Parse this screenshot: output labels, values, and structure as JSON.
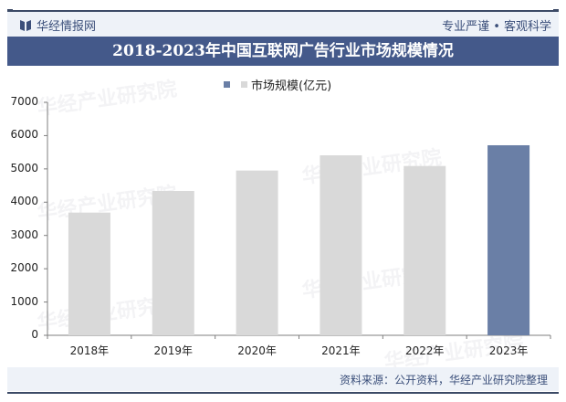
{
  "header": {
    "brand": "华经情报网",
    "brand_icon": "book-icon",
    "slogan": "专业严谨 • 客观科学",
    "title": "2018-2023年中国互联网广告行业市场规模情况"
  },
  "legend": {
    "label": "市场规模(亿元)"
  },
  "footer": {
    "source": "资料来源：公开资料，华经产业研究院整理"
  },
  "watermark": {
    "text": "华经产业研究院",
    "url": "www.huaon.com"
  },
  "colors": {
    "bar_default": "#d9d9d9",
    "bar_highlight": "#6a7fa6",
    "title_bg": "#44598a",
    "header_bg": "#eef2f8"
  },
  "chart_data": {
    "type": "bar",
    "title": "2018-2023年中国互联网广告行业市场规模情况",
    "categories": [
      "2018年",
      "2019年",
      "2020年",
      "2021年",
      "2022年",
      "2023年"
    ],
    "series": [
      {
        "name": "市场规模(亿元)",
        "values": [
          3687,
          4337,
          4950,
          5408,
          5087,
          5710
        ]
      }
    ],
    "highlight_index": 5,
    "xlabel": "",
    "ylabel": "",
    "ylim": [
      0,
      7000
    ],
    "yticks": [
      "0",
      "1000",
      "2000",
      "3000",
      "4000",
      "5000",
      "6000",
      "7000"
    ],
    "grid": false,
    "legend_position": "top"
  }
}
